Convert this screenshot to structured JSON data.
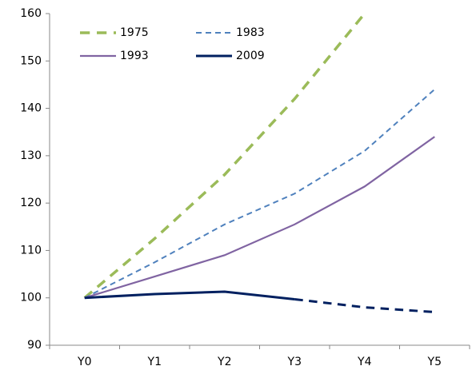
{
  "chart_data": {
    "type": "line",
    "categories": [
      "Y0",
      "Y1",
      "Y2",
      "Y3",
      "Y4",
      "Y5"
    ],
    "series": [
      {
        "name": "1975",
        "color": "#9bbb59",
        "dashed": true,
        "width": 3.5,
        "values": [
          100,
          112.5,
          126,
          142,
          160,
          null
        ]
      },
      {
        "name": "1983",
        "color": "#4f81bd",
        "dashed": true,
        "width": 2,
        "values": [
          100,
          107.5,
          115.5,
          122,
          131,
          144
        ]
      },
      {
        "name": "1993",
        "color": "#8064a2",
        "dashed": false,
        "width": 2.2,
        "values": [
          100,
          104.5,
          109,
          115.5,
          123.5,
          134
        ]
      },
      {
        "name": "2009",
        "color": "#002060",
        "dashed": false,
        "width": 3,
        "dash_from_index": 3,
        "values": [
          100,
          100.8,
          101.3,
          99.7,
          98,
          97
        ]
      }
    ],
    "ylim": [
      90,
      160
    ],
    "yticks": [
      90,
      100,
      110,
      120,
      130,
      140,
      150,
      160
    ],
    "grid": false,
    "legend": "top-left"
  }
}
